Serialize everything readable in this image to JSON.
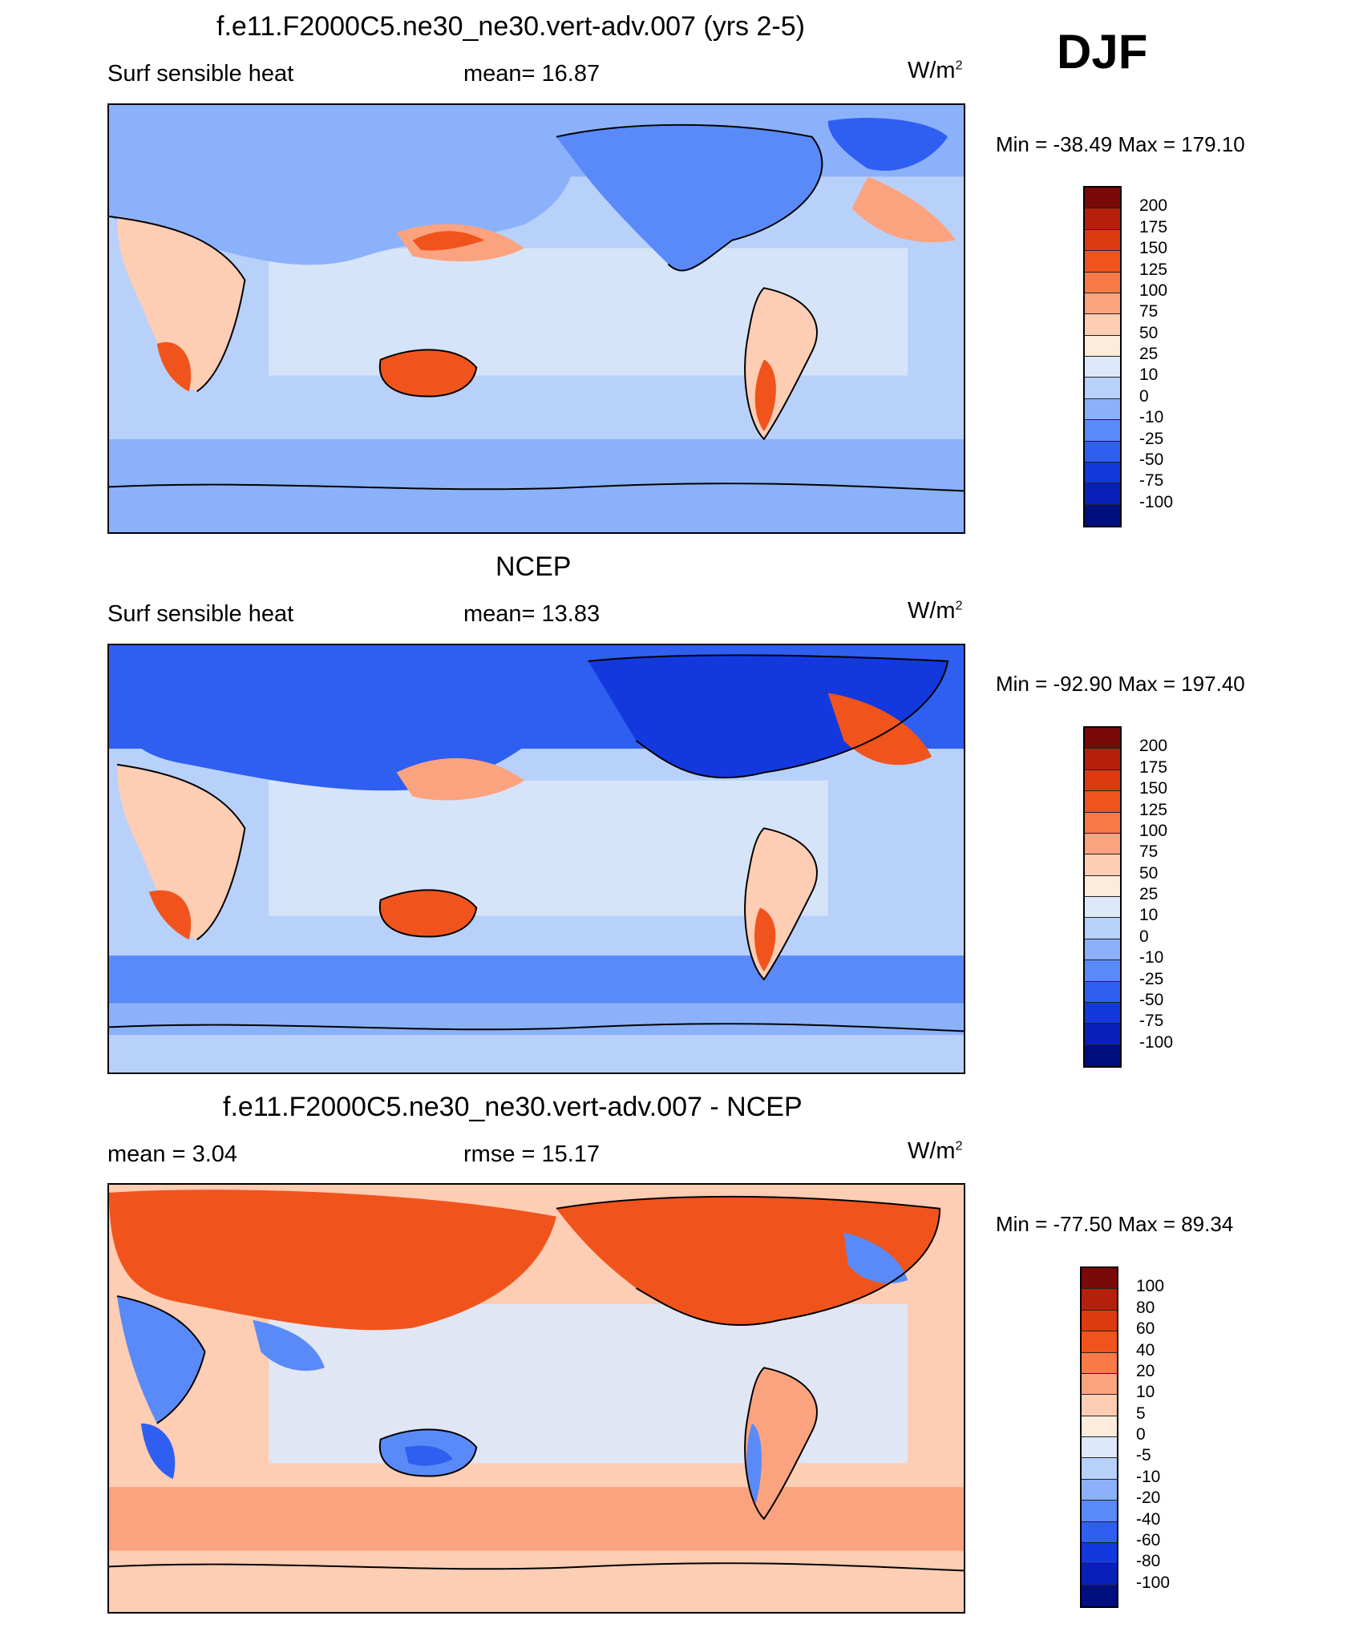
{
  "season_label": "DJF",
  "panels": [
    {
      "id": "model",
      "title": "f.e11.F2000C5.ne30_ne30.vert-adv.007 (yrs 2-5)",
      "left_label": "Surf sensible heat",
      "center_label": "mean=  16.87",
      "unit_base": "W/m",
      "unit_sup": "2",
      "minmax": "Min = -38.49 Max = 179.10",
      "colorbar_ticks": [
        "200",
        "175",
        "150",
        "125",
        "100",
        "75",
        "50",
        "25",
        "10",
        "0",
        "-10",
        "-25",
        "-50",
        "-75",
        "-100"
      ]
    },
    {
      "id": "ncep",
      "title": "NCEP",
      "left_label": "Surf sensible heat",
      "center_label": "mean=  13.83",
      "unit_base": "W/m",
      "unit_sup": "2",
      "minmax": "Min = -92.90 Max = 197.40",
      "colorbar_ticks": [
        "200",
        "175",
        "150",
        "125",
        "100",
        "75",
        "50",
        "25",
        "10",
        "0",
        "-10",
        "-25",
        "-50",
        "-75",
        "-100"
      ]
    },
    {
      "id": "diff",
      "title": "f.e11.F2000C5.ne30_ne30.vert-adv.007 - NCEP",
      "left_label": "mean =   3.04",
      "center_label": "rmse =  15.17",
      "unit_base": "W/m",
      "unit_sup": "2",
      "minmax": "Min = -77.50 Max =  89.34",
      "colorbar_ticks": [
        "100",
        "80",
        "60",
        "40",
        "20",
        "10",
        "5",
        "0",
        "-5",
        "-10",
        "-20",
        "-40",
        "-60",
        "-80",
        "-100"
      ]
    }
  ],
  "colorbar_colors": [
    "#7a0a0a",
    "#b5200c",
    "#de3a10",
    "#f0541c",
    "#f77a47",
    "#fba37f",
    "#fdcdb4",
    "#fdebdc",
    "#dde9fa",
    "#b8d1fb",
    "#8cb1fb",
    "#5a8af7",
    "#2f5ff0",
    "#1338de",
    "#0721b8",
    "#000f80"
  ],
  "map_palette": {
    "ocean_cool": "#b8d1fb",
    "ocean_neutral": "#dde9fa",
    "cold": "#5a8af7",
    "very_cold": "#2f5ff0",
    "warm": "#fba37f",
    "hot": "#f0541c",
    "land_light": "#fdcdb4"
  }
}
